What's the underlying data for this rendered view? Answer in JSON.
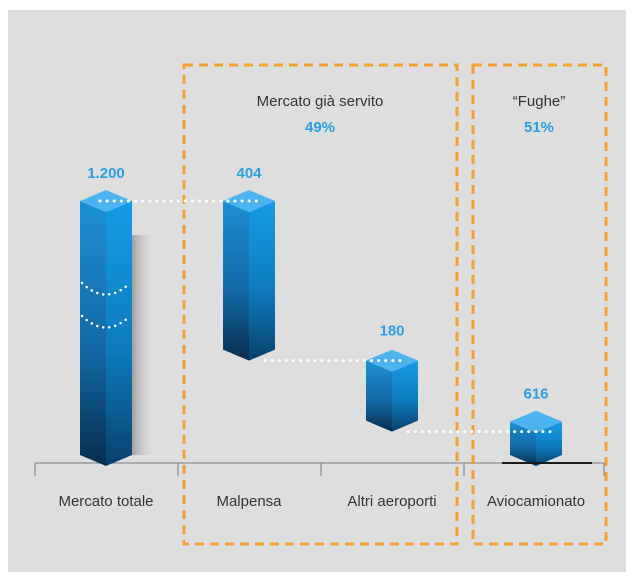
{
  "chart_data": {
    "type": "bar",
    "subtype": "waterfall",
    "categories": [
      "Mercato totale",
      "Malpensa",
      "Altri aeroporti",
      "Aviocamionato"
    ],
    "values": [
      1200,
      404,
      180,
      616
    ],
    "value_labels": [
      "1.200",
      "404",
      "180",
      "616"
    ],
    "groups": [
      {
        "label": "Mercato già servito",
        "percent": "49%",
        "categories": [
          "Malpensa",
          "Altri aeroporti"
        ]
      },
      {
        "label": "“Fughe”",
        "percent": "51%",
        "categories": [
          "Aviocamionato"
        ]
      }
    ],
    "axis_break_on_first_bar": true,
    "colors": {
      "background": "#dedede",
      "bar_front": "#1578b8",
      "bar_side": "#0a5a92",
      "bar_top": "#4db3ee",
      "value_label": "#2a9ee0",
      "group_box": "#f2a033"
    }
  }
}
